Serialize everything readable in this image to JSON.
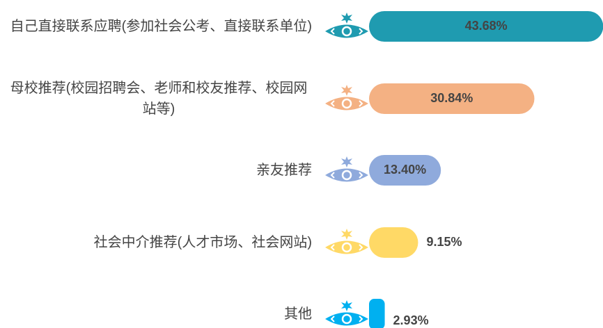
{
  "chart_data": {
    "type": "bar",
    "orientation": "horizontal",
    "categories": [
      "自己直接联系应聘(参加社会公考、直接联系单位)",
      "母校推荐(校园招聘会、老师和校友推荐、校园网站等)",
      "亲友推荐",
      "社会中介推荐(人才市场、社会网站)",
      "其他"
    ],
    "values": [
      43.68,
      30.84,
      13.4,
      9.15,
      2.93
    ],
    "value_labels": [
      "43.68%",
      "30.84%",
      "13.40%",
      "9.15%",
      "2.93%"
    ],
    "colors": [
      "#1f9bb0",
      "#f4b183",
      "#8faadc",
      "#ffd966",
      "#00b0f0"
    ]
  }
}
